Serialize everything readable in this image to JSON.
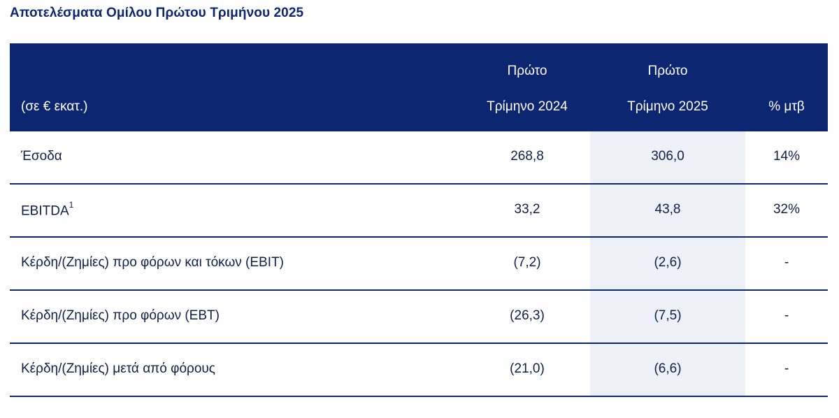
{
  "title": "Αποτελέσματα Ομίλου Πρώτου Τριμήνου 2025",
  "table": {
    "unit_label": "(σε € εκατ.)",
    "columns": [
      {
        "line1": "Πρώτο",
        "line2": "Τρίμηνο 2024"
      },
      {
        "line1": "Πρώτο",
        "line2": "Τρίμηνο 2025"
      },
      {
        "line1": "",
        "line2": "% μτβ"
      }
    ],
    "rows": [
      {
        "label": "Έσοδα",
        "sup": "",
        "q1_2024": "268,8",
        "q1_2025": "306,0",
        "change": "14%"
      },
      {
        "label": "EBITDA",
        "sup": "1",
        "q1_2024": "33,2",
        "q1_2025": "43,8",
        "change": "32%"
      },
      {
        "label": "Κέρδη/(Ζημίες) προ φόρων και τόκων (EBIT)",
        "sup": "",
        "q1_2024": "(7,2)",
        "q1_2025": "(2,6)",
        "change": "-"
      },
      {
        "label": "Κέρδη/(Ζημίες) προ φόρων (EBT)",
        "sup": "",
        "q1_2024": "(26,3)",
        "q1_2025": "(7,5)",
        "change": "-"
      },
      {
        "label": "Κέρδη/(Ζημίες) μετά από φόρους",
        "sup": "",
        "q1_2024": "(21,0)",
        "q1_2025": "(6,6)",
        "change": "-"
      }
    ]
  },
  "colors": {
    "header_bg": "#0c2672",
    "highlight_col_bg": "#eef1f8",
    "title_text": "#0d2672"
  }
}
